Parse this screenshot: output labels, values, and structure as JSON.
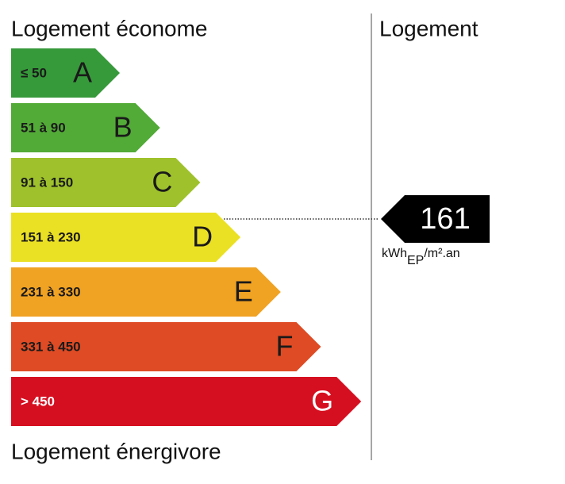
{
  "header": {
    "title": "Logement économe",
    "column": "Logement"
  },
  "footer": {
    "title": "Logement énergivore"
  },
  "classes": [
    {
      "range": "≤ 50",
      "letter": "A",
      "color": "#36993a",
      "text_color": "#1a1a1a"
    },
    {
      "range": "51 à 90",
      "letter": "B",
      "color": "#52aa37",
      "text_color": "#1a1a1a"
    },
    {
      "range": "91 à 150",
      "letter": "C",
      "color": "#9fc22c",
      "text_color": "#1a1a1a"
    },
    {
      "range": "151 à 230",
      "letter": "D",
      "color": "#ebe124",
      "text_color": "#1a1a1a"
    },
    {
      "range": "231 à 330",
      "letter": "E",
      "color": "#f0a223",
      "text_color": "#1a1a1a"
    },
    {
      "range": "331 à 450",
      "letter": "F",
      "color": "#de4b24",
      "text_color": "#1a1a1a"
    },
    {
      "range": "> 450",
      "letter": "G",
      "color": "#d50f20",
      "text_color": "#ffffff"
    }
  ],
  "indicator": {
    "value": 161,
    "unit_main": "kWh",
    "unit_sub": "EP",
    "unit_rest": "/m².an"
  }
}
